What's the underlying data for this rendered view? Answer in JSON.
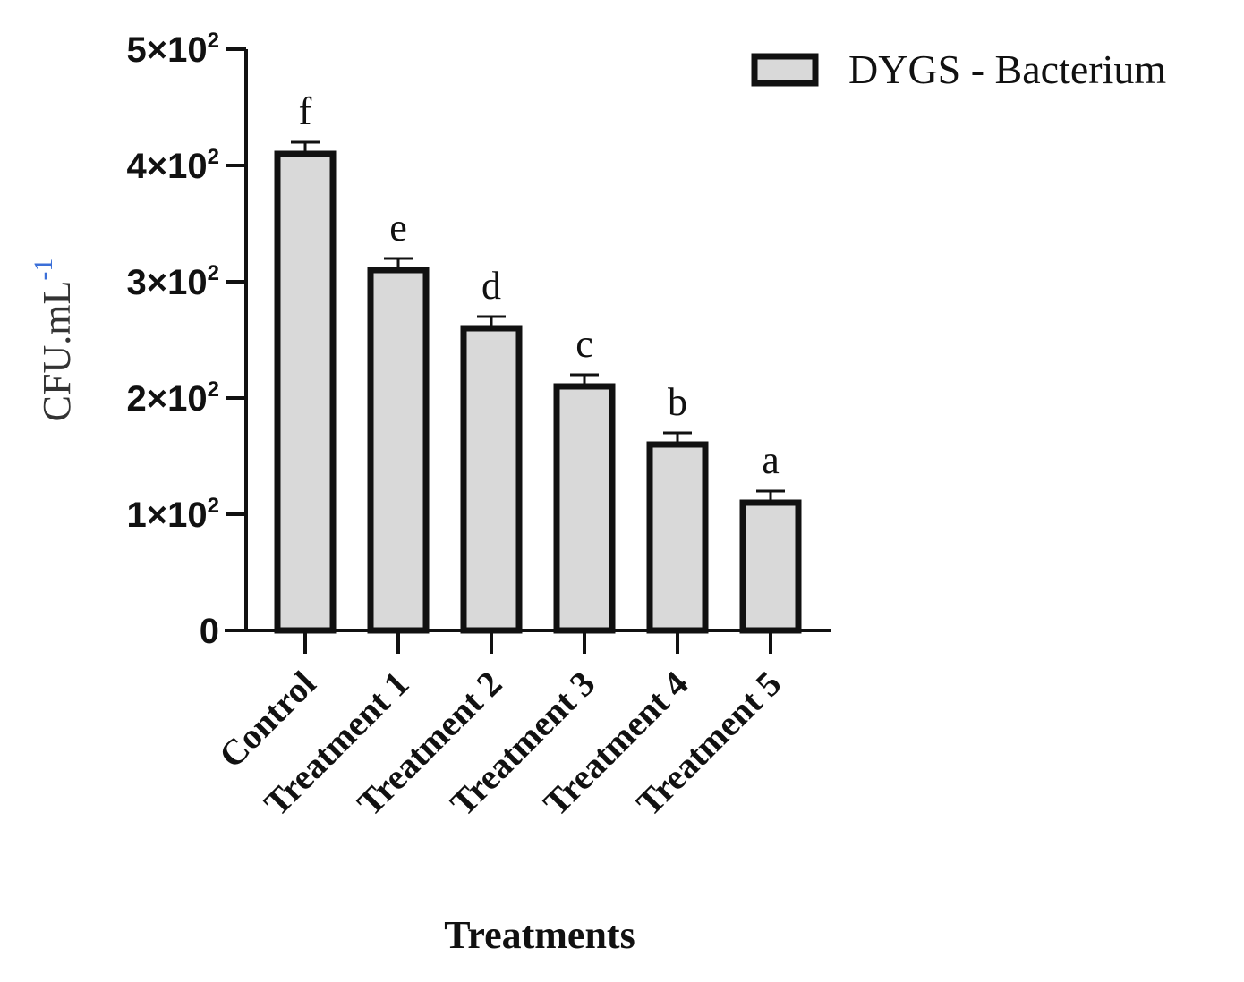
{
  "chart_data": {
    "type": "bar",
    "categories": [
      "Control",
      "Treatment 1",
      "Treatment 2",
      "Treatment 3",
      "Treatment 4",
      "Treatment 5"
    ],
    "series": [
      {
        "name": "DYGS - Bacterium",
        "values": [
          410,
          310,
          260,
          210,
          160,
          110
        ],
        "errors": [
          10,
          10,
          10,
          10,
          10,
          10
        ],
        "significance": [
          "f",
          "e",
          "d",
          "c",
          "b",
          "a"
        ],
        "color": "#d9d9d9"
      }
    ],
    "y_ticks": [
      {
        "value": 0,
        "base": "0",
        "exp": ""
      },
      {
        "value": 100,
        "base": "1×10",
        "exp": "2"
      },
      {
        "value": 200,
        "base": "2×10",
        "exp": "2"
      },
      {
        "value": 300,
        "base": "3×10",
        "exp": "2"
      },
      {
        "value": 400,
        "base": "4×10",
        "exp": "2"
      },
      {
        "value": 500,
        "base": "5×10",
        "exp": "2"
      }
    ],
    "ylim": [
      0,
      500
    ],
    "xlabel": "Treatments",
    "ylabel": "CFU.mL",
    "ylabel_sup": "-1",
    "legend_position": "top-right",
    "grid": false,
    "bar_edge_color": "#111111",
    "ylabel_sup_color": "#3b6fd8"
  }
}
